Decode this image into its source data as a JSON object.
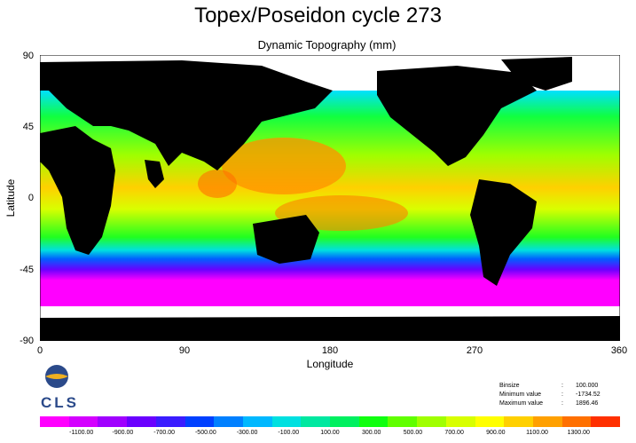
{
  "title": "Topex/Poseidon cycle 273",
  "subtitle": "Dynamic Topography (mm)",
  "xlabel": "Longitude",
  "ylabel": "Latitude",
  "x_ticks": [
    "0",
    "90",
    "180",
    "270",
    "360"
  ],
  "y_ticks": [
    "90",
    "45",
    "0",
    "-45",
    "-90"
  ],
  "logo": {
    "text": "CLS"
  },
  "stats": {
    "rows": [
      {
        "label": "Binsize",
        "value": "100.000"
      },
      {
        "label": "Minimum value",
        "value": "-1734.52"
      },
      {
        "label": "Maximum value",
        "value": "1896.46"
      }
    ]
  },
  "colorbar": {
    "labels": [
      "-1100.00",
      "-900.00",
      "-700.00",
      "-500.00",
      "-300.00",
      "-100.00",
      "100.00",
      "300.00",
      "500.00",
      "700.00",
      "900.00",
      "1100.00",
      "1300.00"
    ],
    "colors": [
      "#ff00ff",
      "#d400ff",
      "#a000ff",
      "#6a00ff",
      "#3a1cff",
      "#0040ff",
      "#0080ff",
      "#00b8ff",
      "#00e0e0",
      "#00e8a0",
      "#00f060",
      "#10ff10",
      "#60ff00",
      "#a0ff00",
      "#d8ff00",
      "#ffff00",
      "#ffd000",
      "#ffa000",
      "#ff7000",
      "#ff3000"
    ]
  }
}
